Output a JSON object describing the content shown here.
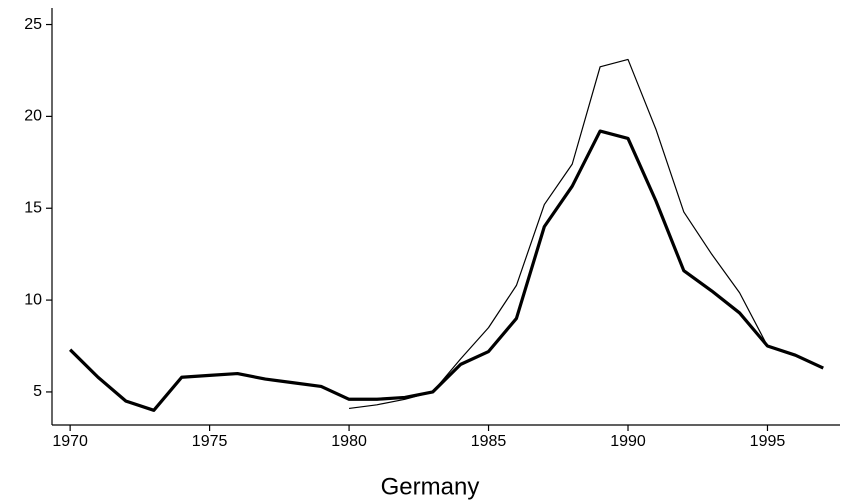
{
  "chart_data": {
    "type": "line",
    "x_label": "Germany",
    "x": [
      1970,
      1971,
      1972,
      1973,
      1974,
      1975,
      1976,
      1977,
      1978,
      1979,
      1980,
      1981,
      1982,
      1983,
      1984,
      1985,
      1986,
      1987,
      1988,
      1989,
      1990,
      1991,
      1992,
      1993,
      1994,
      1995,
      1996,
      1997
    ],
    "series": [
      {
        "color": "#000000",
        "width": 3.2,
        "values": [
          7.3,
          5.8,
          4.5,
          4.0,
          5.8,
          5.9,
          6.0,
          5.7,
          5.5,
          5.3,
          4.6,
          4.6,
          4.7,
          5.0,
          6.5,
          7.2,
          9.0,
          14.0,
          16.2,
          19.2,
          18.8,
          15.4,
          11.6,
          10.5,
          9.3,
          7.5,
          7.0,
          6.3
        ]
      },
      {
        "color": "#000000",
        "width": 1.2,
        "values": [
          null,
          null,
          null,
          null,
          null,
          null,
          null,
          null,
          null,
          null,
          4.1,
          4.3,
          4.6,
          5.0,
          6.8,
          8.5,
          10.8,
          15.2,
          17.4,
          22.7,
          23.1,
          19.3,
          14.8,
          12.5,
          10.4,
          7.5,
          null,
          null
        ]
      }
    ],
    "xlim": [
      1969.35,
      1997.6
    ],
    "xticks": [
      1970,
      1975,
      1980,
      1985,
      1990,
      1995
    ],
    "ylim": [
      3.2,
      25.9
    ],
    "yticks": [
      5,
      10,
      15,
      20,
      25
    ]
  }
}
